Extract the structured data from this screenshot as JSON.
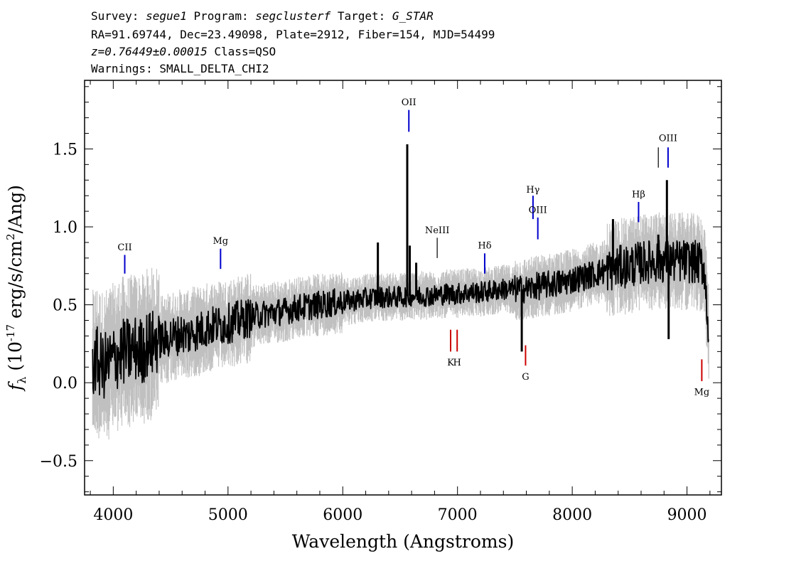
{
  "header": {
    "line1": {
      "survey_label": "Survey:",
      "survey": "segue1",
      "program_label": "Program:",
      "program": "segclusterf",
      "target_label": "Target:",
      "target": "G_STAR"
    },
    "line2": "RA=91.69744, Dec=23.49098, Plate=2912, Fiber=154, MJD=54499",
    "line3": {
      "redshift": "z=0.76449±0.00015",
      "class": "Class=QSO"
    },
    "line4": "Warnings: SMALL_DELTA_CHI2"
  },
  "chart_data": {
    "type": "line",
    "xlabel": "Wavelength (Angstroms)",
    "ylabel": {
      "prefix": "f",
      "subscript": "λ",
      "units_before_exp": " (10",
      "exponent": "-17",
      "units_mid": " erg/s/cm",
      "units_exp2": "2",
      "units_after": "/Ang)"
    },
    "xlim": [
      3750,
      9300
    ],
    "ylim": [
      -0.72,
      1.94
    ],
    "xticks": [
      4000,
      5000,
      6000,
      7000,
      8000,
      9000
    ],
    "xtick_labels": [
      "4000",
      "5000",
      "6000",
      "7000",
      "8000",
      "9000"
    ],
    "yticks": [
      -0.5,
      0.0,
      0.5,
      1.0,
      1.5
    ],
    "ytick_labels": [
      "−0.5",
      "0.0",
      "0.5",
      "1.0",
      "1.5"
    ],
    "grid": false,
    "colors": {
      "flux": "#000000",
      "error_band": "#c0c0c0",
      "emission": "#0000cc",
      "absorption": "#cc0000",
      "sky": "#000000"
    },
    "series": [
      {
        "role": "flux (smoothed black)",
        "x": [
          3820,
          3850,
          3900,
          3950,
          4000,
          4050,
          4100,
          4150,
          4200,
          4250,
          4300,
          4350,
          4400,
          4450,
          4500,
          4550,
          4600,
          4650,
          4700,
          4750,
          4800,
          4850,
          4900,
          4950,
          5000,
          5100,
          5200,
          5300,
          5400,
          5500,
          5600,
          5700,
          5800,
          5900,
          6000,
          6100,
          6200,
          6300,
          6400,
          6500,
          6600,
          6700,
          6800,
          6900,
          7000,
          7100,
          7200,
          7300,
          7400,
          7500,
          7600,
          7700,
          7800,
          7900,
          8000,
          8100,
          8200,
          8300,
          8400,
          8500,
          8600,
          8700,
          8800,
          8900,
          9000,
          9100,
          9150,
          9190
        ],
        "y": [
          0.1,
          0.15,
          0.1,
          0.12,
          0.15,
          0.18,
          0.2,
          0.2,
          0.22,
          0.2,
          0.25,
          0.25,
          0.28,
          0.27,
          0.3,
          0.3,
          0.32,
          0.3,
          0.33,
          0.33,
          0.35,
          0.36,
          0.37,
          0.37,
          0.38,
          0.4,
          0.42,
          0.44,
          0.45,
          0.46,
          0.48,
          0.49,
          0.5,
          0.51,
          0.52,
          0.53,
          0.54,
          0.55,
          0.55,
          0.55,
          0.56,
          0.56,
          0.56,
          0.57,
          0.57,
          0.58,
          0.58,
          0.59,
          0.6,
          0.6,
          0.6,
          0.62,
          0.63,
          0.64,
          0.66,
          0.68,
          0.7,
          0.72,
          0.74,
          0.75,
          0.77,
          0.78,
          0.78,
          0.78,
          0.78,
          0.77,
          0.75,
          0.3
        ]
      }
    ],
    "spikes": [
      {
        "x": 6306,
        "y": 0.9
      },
      {
        "x": 6562,
        "y": 1.53
      },
      {
        "x": 6584,
        "y": 0.88
      },
      {
        "x": 6640,
        "y": 0.77
      },
      {
        "x": 7560,
        "y": 0.2
      },
      {
        "x": 8355,
        "y": 1.05
      },
      {
        "x": 8750,
        "y": 0.95
      },
      {
        "x": 8825,
        "y": 1.3
      },
      {
        "x": 8840,
        "y": 0.28
      }
    ],
    "annotations": [
      {
        "label": "CII",
        "x": 4100,
        "kind": "emission",
        "y_bottom": 0.7,
        "y_top": 0.82,
        "label_y": 0.85
      },
      {
        "label": "Mg",
        "x": 4935,
        "kind": "emission",
        "y_bottom": 0.73,
        "y_top": 0.86,
        "label_y": 0.89
      },
      {
        "label": "OII",
        "x": 6576,
        "kind": "emission",
        "y_bottom": 1.61,
        "y_top": 1.75,
        "label_y": 1.78
      },
      {
        "label": "NeIII",
        "x": 6823,
        "kind": "absorption_sky",
        "y_bottom": 0.8,
        "y_top": 0.93,
        "label_y": 0.96
      },
      {
        "label": "Hδ",
        "x": 7237,
        "kind": "emission",
        "y_bottom": 0.7,
        "y_top": 0.83,
        "label_y": 0.86
      },
      {
        "label": "Hγ",
        "x": 7658,
        "kind": "emission",
        "y_bottom": 1.05,
        "y_top": 1.2,
        "label_y": 1.22
      },
      {
        "label": "OIII",
        "x": 7700,
        "kind": "emission",
        "y_bottom": 0.92,
        "y_top": 1.06,
        "label_y": 1.09
      },
      {
        "label": "Hβ",
        "x": 8578,
        "kind": "emission",
        "y_bottom": 1.03,
        "y_top": 1.16,
        "label_y": 1.19
      },
      {
        "label": "",
        "x": 8750,
        "kind": "absorption_sky",
        "y_bottom": 1.38,
        "y_top": 1.51,
        "label_y": 0
      },
      {
        "label": "OIII",
        "x": 8835,
        "kind": "emission",
        "y_bottom": 1.38,
        "y_top": 1.51,
        "label_y": 1.55
      },
      {
        "label": "K",
        "x": 6940,
        "kind": "absorption",
        "y_bottom": 0.2,
        "y_top": 0.34,
        "label_y": 0.11
      },
      {
        "label": "H",
        "x": 6997,
        "kind": "absorption",
        "y_bottom": 0.2,
        "y_top": 0.34,
        "label_y": 0.11
      },
      {
        "label": "G",
        "x": 7593,
        "kind": "absorption",
        "y_bottom": 0.11,
        "y_top": 0.24,
        "label_y": 0.02
      },
      {
        "label": "Mg",
        "x": 9129,
        "kind": "absorption",
        "y_bottom": 0.01,
        "y_top": 0.15,
        "label_y": -0.08
      }
    ]
  }
}
